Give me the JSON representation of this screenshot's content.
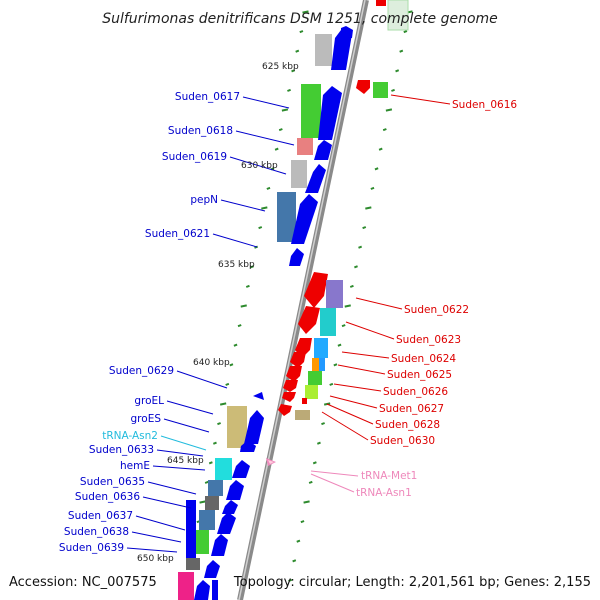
{
  "title": "Sulfurimonas denitrificans DSM 1251, complete genome",
  "accession": "Accession: NC_007575",
  "topology": "Topology: circular; Length: 2,201,561 bp; Genes: 2,155",
  "kbp_marks": [
    "625 kbp",
    "630 kbp",
    "635 kbp",
    "640 kbp",
    "645 kbp",
    "650 kbp"
  ],
  "colors": {
    "forward_label": "#0000cc",
    "reverse_label": "#dd0000",
    "trna_forward": "#22bbdd",
    "trna_reverse": "#ee88bb",
    "backbone": "#999999",
    "tick": "#2e8b2e"
  },
  "gene_labels": {
    "forward": [
      "Suden_0617",
      "Suden_0618",
      "Suden_0619",
      "pepN",
      "Suden_0621",
      "Suden_0629",
      "groEL",
      "groES",
      "tRNA-Asn2",
      "Suden_0633",
      "hemE",
      "Suden_0635",
      "Suden_0636",
      "Suden_0637",
      "Suden_0638",
      "Suden_0639"
    ],
    "reverse": [
      "Suden_0616",
      "Suden_0622",
      "Suden_0623",
      "Suden_0624",
      "Suden_0625",
      "Suden_0626",
      "Suden_0627",
      "Suden_0628",
      "Suden_0630",
      "tRNA-Met1",
      "tRNA-Asn1"
    ]
  }
}
